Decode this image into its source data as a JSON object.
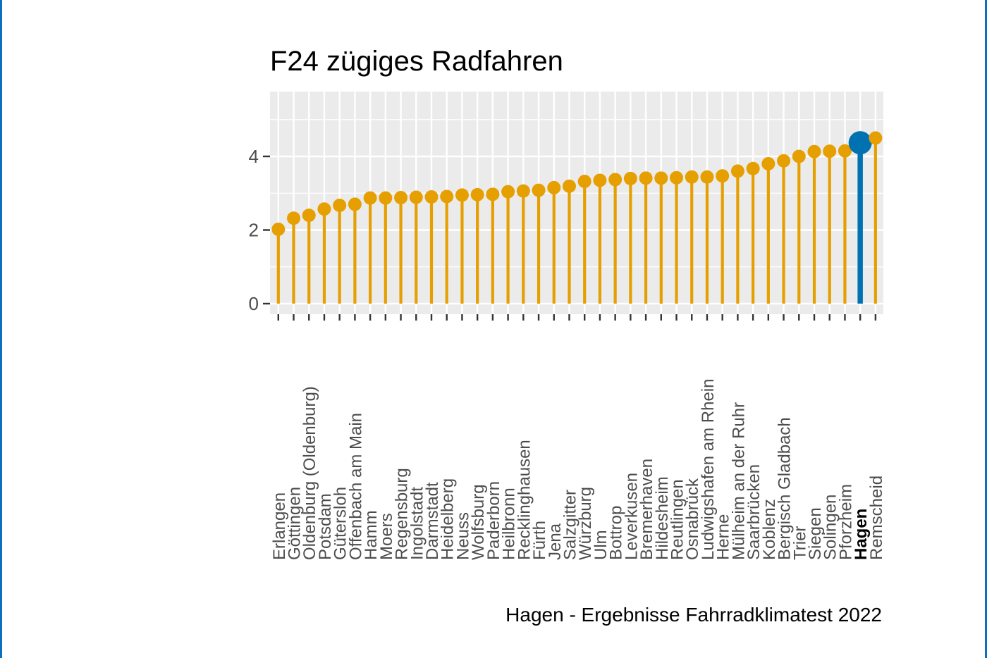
{
  "chart_data": {
    "type": "lollipop",
    "title": "F24 zügiges Radfahren",
    "caption": "Hagen - Ergebnisse Fahrradklimatest 2022",
    "xlabel": "",
    "ylabel": "",
    "ylim": [
      0,
      5.6
    ],
    "yticks": [
      0,
      2,
      4
    ],
    "grid": true,
    "highlight": "Hagen",
    "colors": {
      "default": "#E69F00",
      "highlight": "#0072B2",
      "panel": "#EBEBEB",
      "grid": "#FFFFFF"
    },
    "categories": [
      "Erlangen",
      "Göttingen",
      "Oldenburg (Oldenburg)",
      "Potsdam",
      "Gütersloh",
      "Offenbach am Main",
      "Hamm",
      "Moers",
      "Regensburg",
      "Ingolstadt",
      "Darmstadt",
      "Heidelberg",
      "Neuss",
      "Wolfsburg",
      "Paderborn",
      "Heilbronn",
      "Recklinghausen",
      "Fürth",
      "Jena",
      "Salzgitter",
      "Würzburg",
      "Ulm",
      "Bottrop",
      "Leverkusen",
      "Bremerhaven",
      "Hildesheim",
      "Reutlingen",
      "Osnabrück",
      "Ludwigshafen am Rhein",
      "Herne",
      "Mülheim an der Ruhr",
      "Saarbrücken",
      "Koblenz",
      "Bergisch Gladbach",
      "Trier",
      "Siegen",
      "Solingen",
      "Pforzheim",
      "Hagen",
      "Remscheid"
    ],
    "values": [
      2.02,
      2.32,
      2.4,
      2.57,
      2.67,
      2.7,
      2.87,
      2.87,
      2.88,
      2.89,
      2.9,
      2.91,
      2.95,
      2.96,
      2.97,
      3.04,
      3.06,
      3.08,
      3.15,
      3.19,
      3.32,
      3.35,
      3.37,
      3.4,
      3.41,
      3.41,
      3.42,
      3.44,
      3.44,
      3.47,
      3.6,
      3.67,
      3.8,
      3.88,
      4.0,
      4.13,
      4.14,
      4.15,
      4.37,
      4.5
    ]
  }
}
